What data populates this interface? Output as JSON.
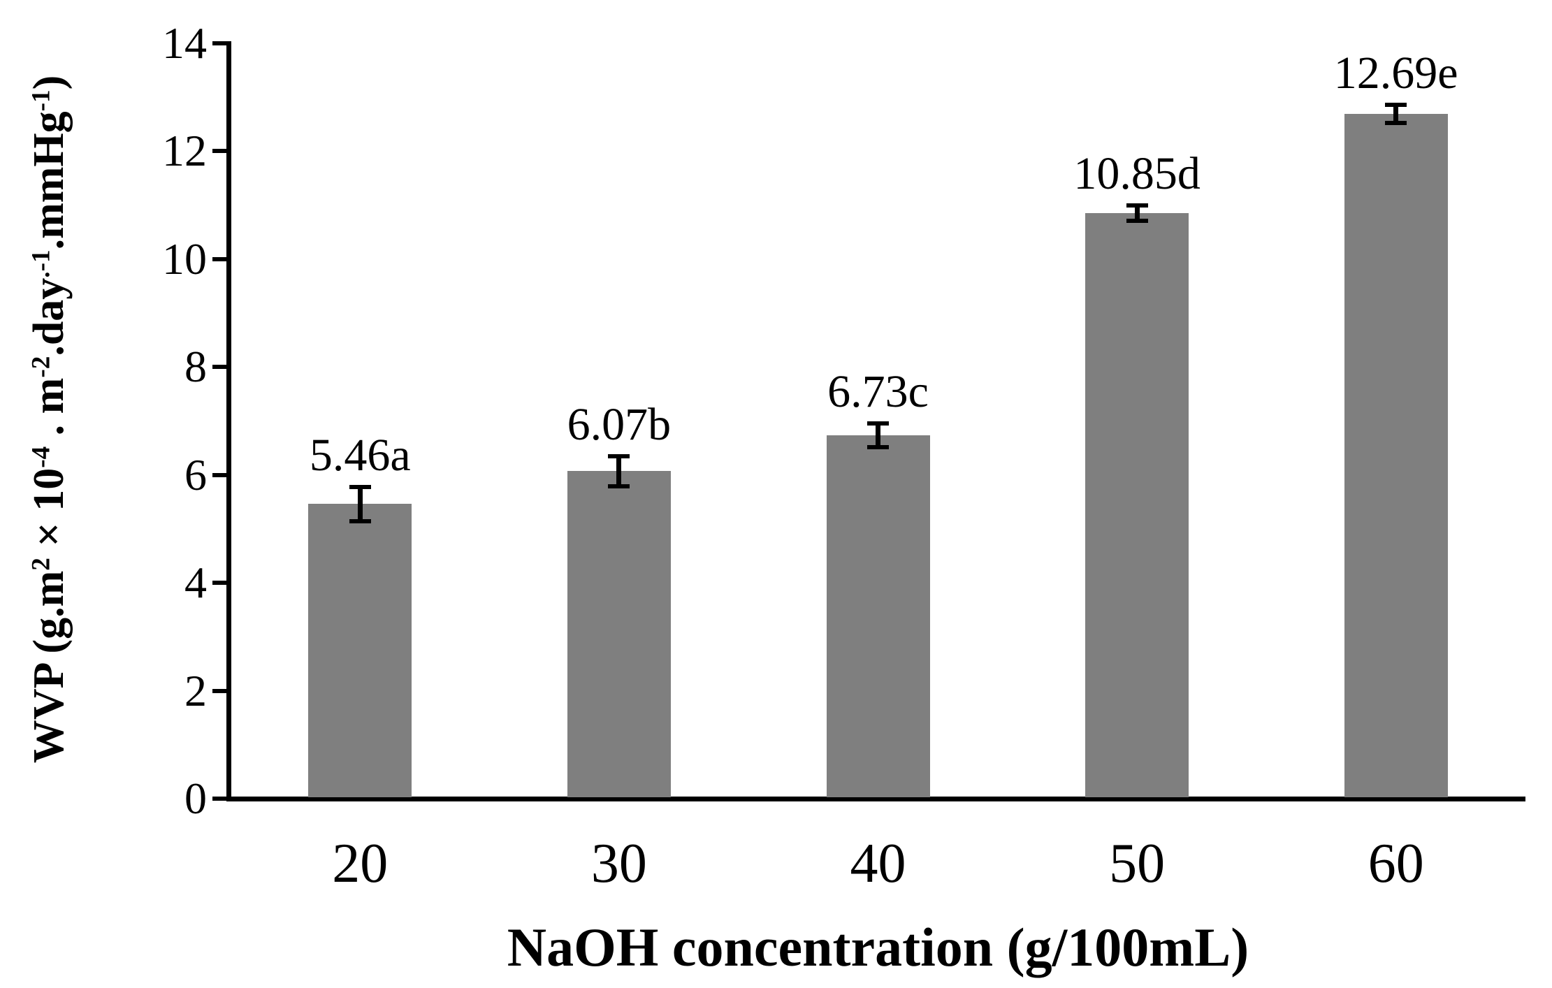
{
  "figure": {
    "background": "#ffffff",
    "axis_color": "#000000",
    "text_color": "#000000"
  },
  "chart_data": {
    "type": "bar",
    "title": "",
    "categories": [
      "20",
      "30",
      "40",
      "50",
      "60"
    ],
    "values": [
      5.46,
      6.07,
      6.73,
      10.85,
      12.69
    ],
    "bar_labels": [
      "5.46a",
      "6.07b",
      "6.73c",
      "10.85d",
      "12.69e"
    ],
    "error_bars": [
      0.32,
      0.28,
      0.22,
      0.14,
      0.17
    ],
    "xlabel": "NaOH concentration (g/100mL)",
    "ylabel": "WVP (g.m² × 10⁻⁴ . m⁻².day·⁻¹.mmHg⁻¹)",
    "ylabel_segments": [
      {
        "t": "WVP (g.m"
      },
      {
        "t": "2",
        "sup": true
      },
      {
        "t": " × 10"
      },
      {
        "t": "-4",
        "sup": true
      },
      {
        "t": " . m"
      },
      {
        "t": "-2",
        "sup": true
      },
      {
        "t": ".day"
      },
      {
        "t": ".-1",
        "sup": true
      },
      {
        "t": ".mmHg"
      },
      {
        "t": "-1",
        "sup": true
      },
      {
        "t": ")"
      }
    ],
    "yticks": [
      0,
      2,
      4,
      6,
      8,
      10,
      12,
      14
    ],
    "ylim": [
      0,
      14
    ],
    "bar_color": "#7f7f7f",
    "grid": false,
    "legend": "none"
  }
}
